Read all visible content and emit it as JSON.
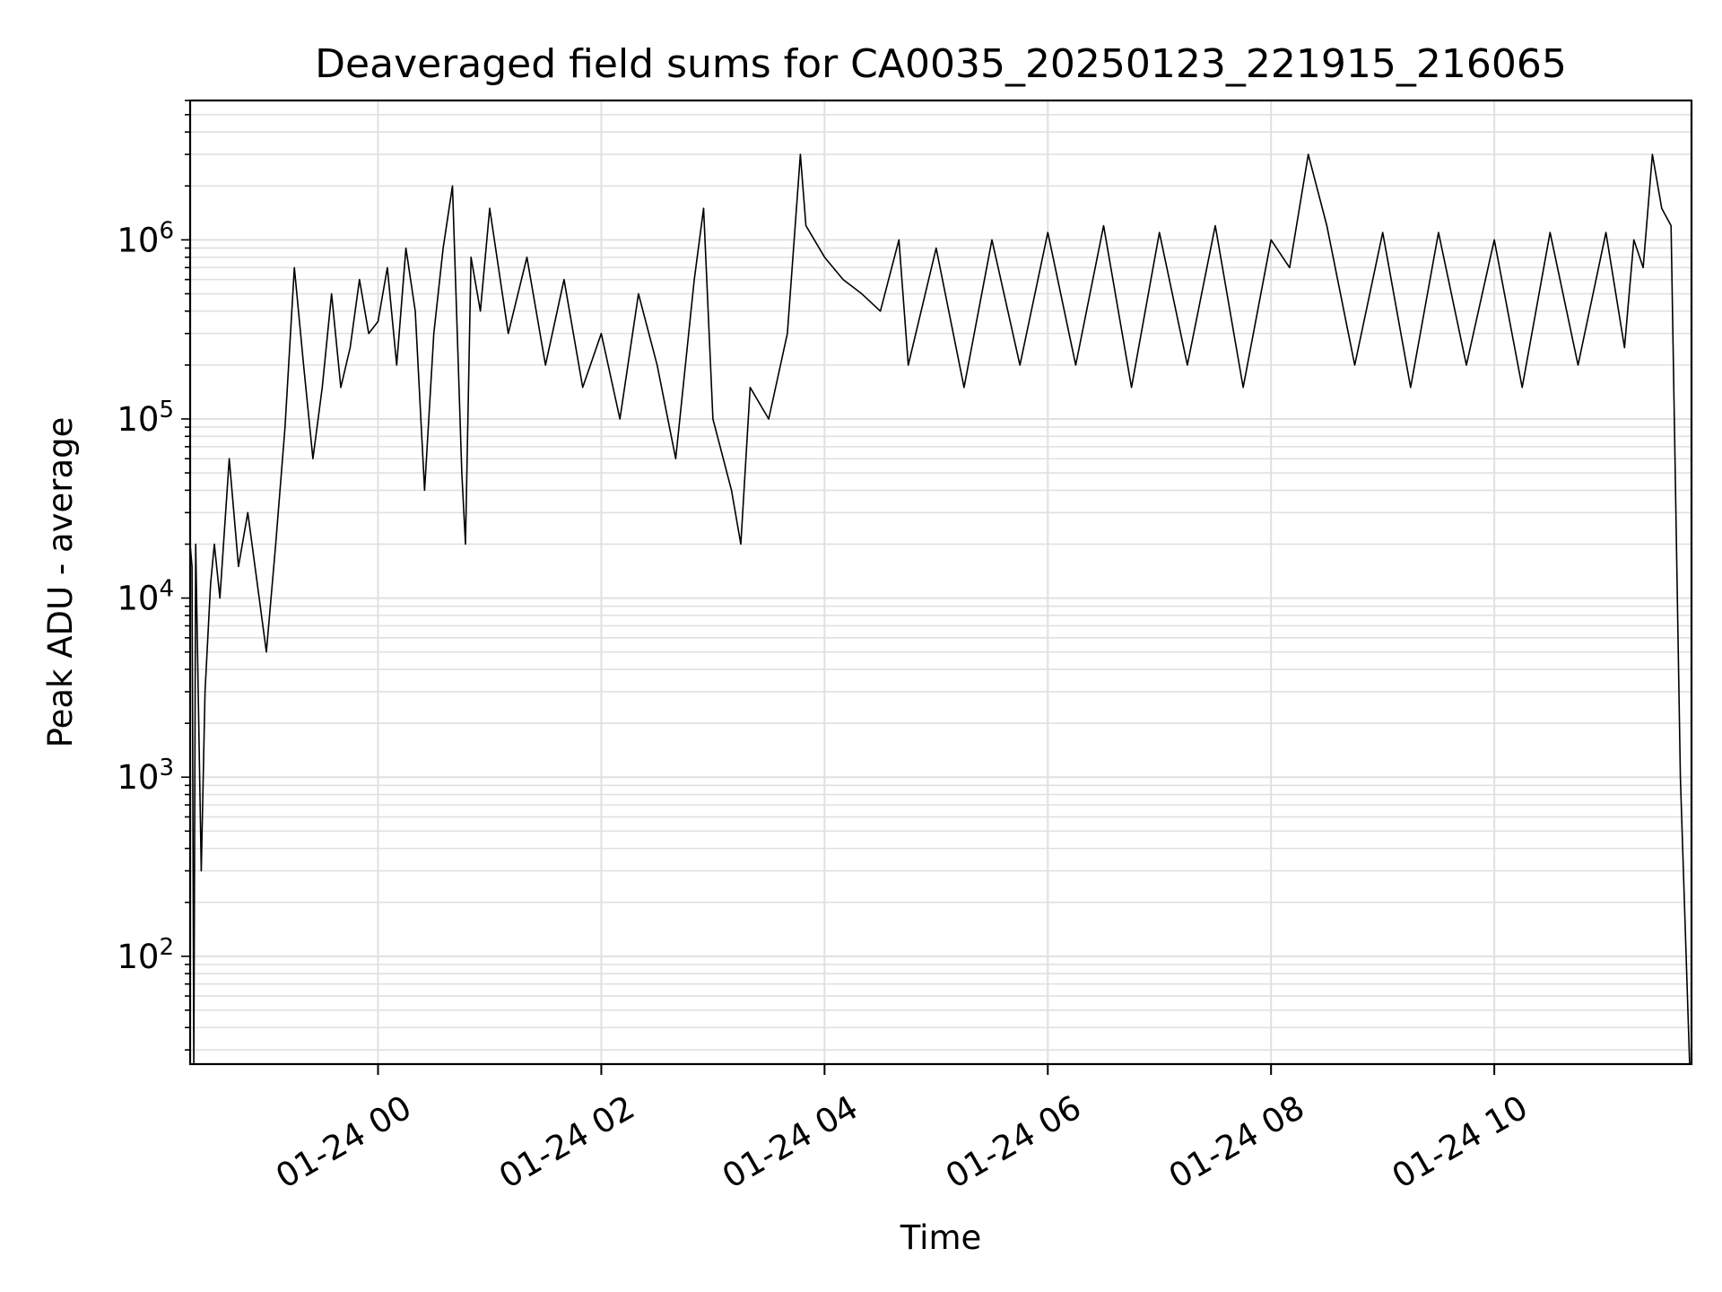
{
  "chart_data": {
    "type": "line",
    "title": "Deaveraged field sums for CA0035_20250123_221915_216065",
    "xlabel": "Time",
    "ylabel": "Peak ADU - average",
    "x_scale": "time",
    "y_scale": "log",
    "xlim": [
      "2025-01-23 22:19",
      "2025-01-24 11:46"
    ],
    "ylim": [
      25,
      6000000
    ],
    "grid": true,
    "grid_color": "#e0e0e0",
    "line_color": "#000000",
    "x_ticks": [
      {
        "value": "2025-01-24 00:00",
        "label": "01-24 00"
      },
      {
        "value": "2025-01-24 02:00",
        "label": "01-24 02"
      },
      {
        "value": "2025-01-24 04:00",
        "label": "01-24 04"
      },
      {
        "value": "2025-01-24 06:00",
        "label": "01-24 06"
      },
      {
        "value": "2025-01-24 08:00",
        "label": "01-24 08"
      },
      {
        "value": "2025-01-24 10:00",
        "label": "01-24 10"
      }
    ],
    "y_ticks": [
      {
        "value": 100,
        "base": "10",
        "exp": "2"
      },
      {
        "value": 1000,
        "base": "10",
        "exp": "3"
      },
      {
        "value": 10000,
        "base": "10",
        "exp": "4"
      },
      {
        "value": 100000,
        "base": "10",
        "exp": "5"
      },
      {
        "value": 1000000,
        "base": "10",
        "exp": "6"
      }
    ],
    "series": [
      {
        "x": [
          "2025-01-23 22:19",
          "2025-01-23 22:20",
          "2025-01-23 22:21",
          "2025-01-23 22:22",
          "2025-01-23 22:25",
          "2025-01-23 22:27",
          "2025-01-23 22:30",
          "2025-01-23 22:32",
          "2025-01-23 22:35",
          "2025-01-23 22:40",
          "2025-01-23 22:45",
          "2025-01-23 22:50",
          "2025-01-23 23:00",
          "2025-01-23 23:05",
          "2025-01-23 23:10",
          "2025-01-23 23:15",
          "2025-01-23 23:20",
          "2025-01-23 23:25",
          "2025-01-23 23:30",
          "2025-01-23 23:35",
          "2025-01-23 23:40",
          "2025-01-23 23:45",
          "2025-01-23 23:50",
          "2025-01-23 23:55",
          "2025-01-24 00:00",
          "2025-01-24 00:05",
          "2025-01-24 00:10",
          "2025-01-24 00:15",
          "2025-01-24 00:20",
          "2025-01-24 00:25",
          "2025-01-24 00:30",
          "2025-01-24 00:35",
          "2025-01-24 00:40",
          "2025-01-24 00:45",
          "2025-01-24 00:47",
          "2025-01-24 00:50",
          "2025-01-24 00:55",
          "2025-01-24 01:00",
          "2025-01-24 01:10",
          "2025-01-24 01:20",
          "2025-01-24 01:30",
          "2025-01-24 01:40",
          "2025-01-24 01:50",
          "2025-01-24 02:00",
          "2025-01-24 02:10",
          "2025-01-24 02:20",
          "2025-01-24 02:30",
          "2025-01-24 02:40",
          "2025-01-24 02:50",
          "2025-01-24 02:55",
          "2025-01-24 03:00",
          "2025-01-24 03:10",
          "2025-01-24 03:15",
          "2025-01-24 03:20",
          "2025-01-24 03:30",
          "2025-01-24 03:40",
          "2025-01-24 03:47",
          "2025-01-24 03:50",
          "2025-01-24 04:00",
          "2025-01-24 04:10",
          "2025-01-24 04:20",
          "2025-01-24 04:30",
          "2025-01-24 04:40",
          "2025-01-24 04:45",
          "2025-01-24 05:00",
          "2025-01-24 05:15",
          "2025-01-24 05:30",
          "2025-01-24 05:45",
          "2025-01-24 06:00",
          "2025-01-24 06:15",
          "2025-01-24 06:30",
          "2025-01-24 06:45",
          "2025-01-24 07:00",
          "2025-01-24 07:15",
          "2025-01-24 07:30",
          "2025-01-24 07:45",
          "2025-01-24 08:00",
          "2025-01-24 08:10",
          "2025-01-24 08:20",
          "2025-01-24 08:30",
          "2025-01-24 08:45",
          "2025-01-24 09:00",
          "2025-01-24 09:15",
          "2025-01-24 09:30",
          "2025-01-24 09:45",
          "2025-01-24 10:00",
          "2025-01-24 10:15",
          "2025-01-24 10:30",
          "2025-01-24 10:45",
          "2025-01-24 11:00",
          "2025-01-24 11:10",
          "2025-01-24 11:15",
          "2025-01-24 11:20",
          "2025-01-24 11:25",
          "2025-01-24 11:30",
          "2025-01-24 11:35",
          "2025-01-24 11:40",
          "2025-01-24 11:45"
        ],
        "y": [
          20000,
          15000,
          25,
          20000,
          300,
          3000,
          12000,
          20000,
          10000,
          60000,
          15000,
          30000,
          5000,
          20000,
          90000,
          700000,
          200000,
          60000,
          150000,
          500000,
          150000,
          250000,
          600000,
          300000,
          350000,
          700000,
          200000,
          900000,
          400000,
          40000,
          300000,
          900000,
          2000000,
          50000,
          20000,
          800000,
          400000,
          1500000,
          300000,
          800000,
          200000,
          600000,
          150000,
          300000,
          100000,
          500000,
          200000,
          60000,
          600000,
          1500000,
          100000,
          40000,
          20000,
          150000,
          100000,
          300000,
          3000000,
          1200000,
          800000,
          600000,
          500000,
          400000,
          1000000,
          200000,
          900000,
          150000,
          1000000,
          200000,
          1100000,
          200000,
          1200000,
          150000,
          1100000,
          200000,
          1200000,
          150000,
          1000000,
          700000,
          3000000,
          1200000,
          200000,
          1100000,
          150000,
          1100000,
          200000,
          1000000,
          150000,
          1100000,
          200000,
          1100000,
          250000,
          1000000,
          700000,
          3000000,
          1500000,
          1200000,
          1000,
          25
        ]
      }
    ]
  }
}
